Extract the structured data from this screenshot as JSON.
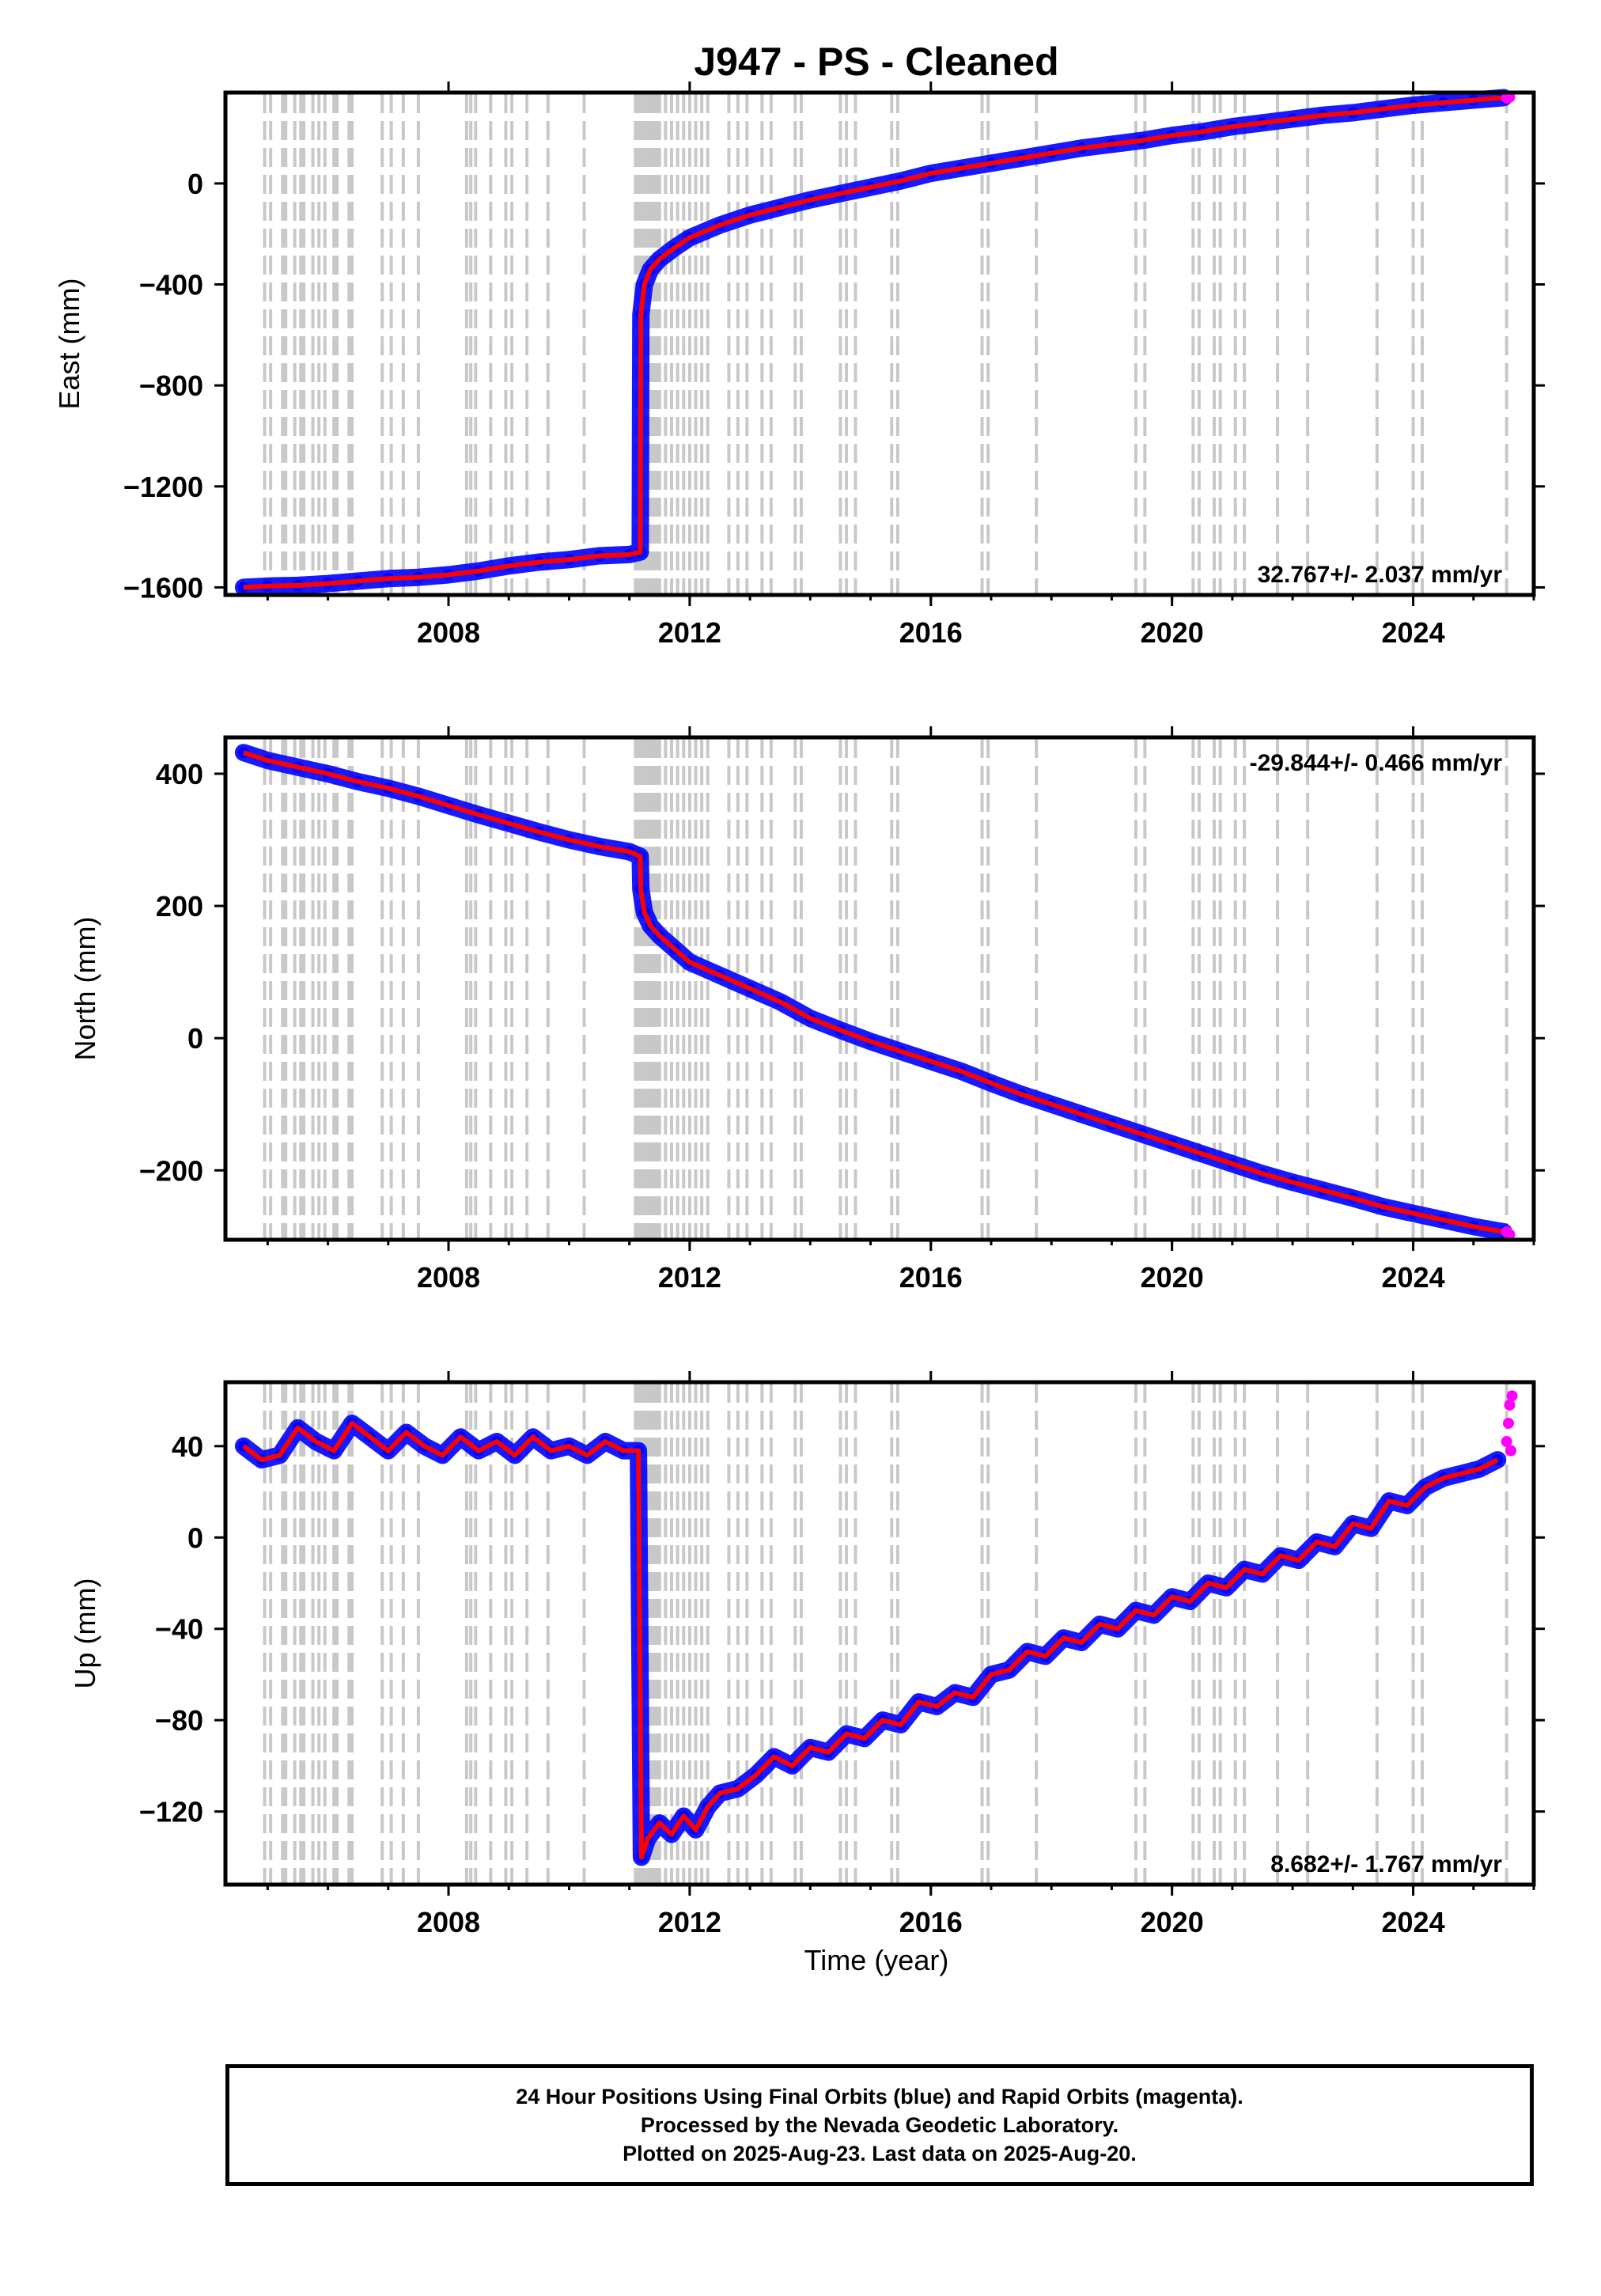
{
  "chart_data": {
    "type": "scatter",
    "title": "J947  - PS - Cleaned",
    "xlabel": "Time (year)",
    "x_tick_labels": [
      "2008",
      "2012",
      "2016",
      "2020",
      "2024"
    ],
    "x_ticks": [
      2008,
      2012,
      2016,
      2020,
      2024
    ],
    "xlim": [
      2004.3,
      2026.0
    ],
    "colors": {
      "final_orbits": "#0000ff",
      "rapid_orbits": "#ff00ff",
      "fit_line": "#ff0000",
      "event_lines": "#c8c8c8"
    },
    "event_lines_years": [
      2004.95,
      2005.05,
      2005.25,
      2005.3,
      2005.45,
      2005.55,
      2005.6,
      2005.75,
      2005.85,
      2005.95,
      2006.1,
      2006.15,
      2006.35,
      2006.4,
      2006.9,
      2007.05,
      2007.25,
      2007.5,
      2008.3,
      2008.37,
      2008.45,
      2008.7,
      2008.95,
      2009.05,
      2009.3,
      2009.65,
      2010.25,
      2011.1,
      2011.15,
      2011.2,
      2011.25,
      2011.3,
      2011.35,
      2011.4,
      2011.45,
      2011.5,
      2011.6,
      2011.7,
      2011.8,
      2011.9,
      2012.0,
      2012.1,
      2012.2,
      2012.3,
      2012.65,
      2012.8,
      2012.95,
      2013.2,
      2013.35,
      2013.75,
      2013.85,
      2014.5,
      2014.6,
      2014.75,
      2015.35,
      2015.45,
      2016.85,
      2016.95,
      2017.75,
      2019.4,
      2019.55,
      2020.35,
      2020.45,
      2020.7,
      2020.8,
      2021.05,
      2021.2,
      2021.75,
      2022.25,
      2023.4,
      2024.0,
      2024.15,
      2025.55
    ],
    "panels": [
      {
        "id": "east",
        "ylabel": "East (mm)",
        "ylim": [
          -1630,
          360
        ],
        "y_ticks": [
          0,
          -400,
          -800,
          -1200,
          -1600
        ],
        "y_tick_labels": [
          "0",
          "−400",
          "−800",
          "−1200",
          "−1600"
        ],
        "velocity_label": "32.767+/- 2.037 mm/yr",
        "velocity_anchor": "bottom-right",
        "series": [
          {
            "name": "final_orbits",
            "x": [
              2004.6,
              2005.0,
              2005.5,
              2006.0,
              2006.5,
              2007.0,
              2007.5,
              2008.0,
              2008.5,
              2009.0,
              2009.5,
              2010.0,
              2010.5,
              2011.0,
              2011.18,
              2011.19,
              2011.25,
              2011.35,
              2011.5,
              2011.75,
              2012.0,
              2012.5,
              2013.0,
              2013.5,
              2014.0,
              2014.5,
              2015.0,
              2015.5,
              2016.0,
              2016.5,
              2017.0,
              2017.5,
              2018.0,
              2018.5,
              2019.0,
              2019.5,
              2020.0,
              2020.5,
              2021.0,
              2021.5,
              2022.0,
              2022.5,
              2023.0,
              2023.5,
              2024.0,
              2024.5,
              2025.0,
              2025.5
            ],
            "y": [
              -1600,
              -1595,
              -1592,
              -1585,
              -1575,
              -1565,
              -1560,
              -1550,
              -1535,
              -1515,
              -1500,
              -1490,
              -1475,
              -1470,
              -1460,
              -520,
              -400,
              -340,
              -300,
              -255,
              -215,
              -165,
              -125,
              -95,
              -65,
              -40,
              -15,
              10,
              40,
              60,
              80,
              100,
              120,
              140,
              155,
              170,
              190,
              205,
              225,
              240,
              255,
              270,
              280,
              295,
              310,
              320,
              330,
              340
            ]
          },
          {
            "name": "rapid_orbits",
            "x": [
              2025.55,
              2025.6
            ],
            "y": [
              338,
              342
            ]
          }
        ]
      },
      {
        "id": "north",
        "ylabel": "North (mm)",
        "ylim": [
          -305,
          455
        ],
        "y_ticks": [
          400,
          200,
          0,
          -200
        ],
        "y_tick_labels": [
          "400",
          "200",
          "0",
          "−200"
        ],
        "velocity_label": "-29.844+/- 0.466 mm/yr",
        "velocity_anchor": "top-right",
        "series": [
          {
            "name": "final_orbits",
            "x": [
              2004.6,
              2005.0,
              2005.5,
              2006.0,
              2006.5,
              2007.0,
              2007.5,
              2008.0,
              2008.5,
              2009.0,
              2009.5,
              2010.0,
              2010.5,
              2011.0,
              2011.18,
              2011.19,
              2011.25,
              2011.35,
              2011.5,
              2011.75,
              2012.0,
              2012.5,
              2013.0,
              2013.5,
              2014.0,
              2014.5,
              2015.0,
              2015.5,
              2016.0,
              2016.5,
              2017.0,
              2017.5,
              2018.0,
              2018.5,
              2019.0,
              2019.5,
              2020.0,
              2020.5,
              2021.0,
              2021.5,
              2022.0,
              2022.5,
              2023.0,
              2023.5,
              2024.0,
              2024.5,
              2025.0,
              2025.5
            ],
            "y": [
              432,
              420,
              410,
              400,
              388,
              378,
              366,
              352,
              338,
              325,
              312,
              300,
              290,
              282,
              275,
              225,
              190,
              170,
              155,
              135,
              115,
              95,
              75,
              55,
              30,
              12,
              -5,
              -20,
              -35,
              -50,
              -68,
              -85,
              -100,
              -115,
              -130,
              -145,
              -160,
              -175,
              -190,
              -205,
              -218,
              -230,
              -242,
              -255,
              -265,
              -275,
              -285,
              -293
            ]
          },
          {
            "name": "rapid_orbits",
            "x": [
              2025.55,
              2025.6
            ],
            "y": [
              -293,
              -297
            ]
          }
        ]
      },
      {
        "id": "up",
        "ylabel": "Up (mm)",
        "ylim": [
          -152,
          68
        ],
        "y_ticks": [
          40,
          0,
          -40,
          -80,
          -120
        ],
        "y_tick_labels": [
          "40",
          "0",
          "−40",
          "−80",
          "−120"
        ],
        "velocity_label": "8.682+/- 1.767 mm/yr",
        "velocity_anchor": "bottom-right",
        "series": [
          {
            "name": "final_orbits",
            "x": [
              2004.6,
              2004.9,
              2005.2,
              2005.5,
              2005.8,
              2006.1,
              2006.4,
              2006.7,
              2007.0,
              2007.3,
              2007.6,
              2007.9,
              2008.2,
              2008.5,
              2008.8,
              2009.1,
              2009.4,
              2009.7,
              2010.0,
              2010.3,
              2010.6,
              2010.9,
              2011.15,
              2011.2,
              2011.3,
              2011.5,
              2011.7,
              2011.9,
              2012.1,
              2012.3,
              2012.5,
              2012.8,
              2013.1,
              2013.4,
              2013.7,
              2014.0,
              2014.3,
              2014.6,
              2014.9,
              2015.2,
              2015.5,
              2015.8,
              2016.1,
              2016.4,
              2016.7,
              2017.0,
              2017.3,
              2017.6,
              2017.9,
              2018.2,
              2018.5,
              2018.8,
              2019.1,
              2019.4,
              2019.7,
              2020.0,
              2020.3,
              2020.6,
              2020.9,
              2021.2,
              2021.5,
              2021.8,
              2022.1,
              2022.4,
              2022.7,
              2023.0,
              2023.3,
              2023.6,
              2023.9,
              2024.2,
              2024.5,
              2024.8,
              2025.1,
              2025.4
            ],
            "y": [
              40,
              34,
              36,
              48,
              42,
              38,
              50,
              44,
              38,
              46,
              40,
              36,
              44,
              38,
              42,
              36,
              44,
              38,
              40,
              36,
              42,
              38,
              38,
              -140,
              -132,
              -125,
              -130,
              -122,
              -128,
              -118,
              -112,
              -110,
              -104,
              -96,
              -100,
              -92,
              -94,
              -86,
              -88,
              -80,
              -82,
              -72,
              -74,
              -68,
              -70,
              -60,
              -58,
              -50,
              -52,
              -44,
              -46,
              -38,
              -40,
              -32,
              -34,
              -26,
              -28,
              -20,
              -22,
              -14,
              -16,
              -8,
              -10,
              -2,
              -4,
              6,
              4,
              16,
              14,
              22,
              26,
              28,
              30,
              34
            ]
          },
          {
            "name": "rapid_orbits",
            "x": [
              2025.55,
              2025.58,
              2025.6,
              2025.62,
              2025.64
            ],
            "y": [
              42,
              50,
              58,
              38,
              62
            ]
          }
        ]
      }
    ],
    "footer_lines": [
      "24 Hour Positions Using Final Orbits (blue) and Rapid Orbits (magenta).",
      "Processed by the Nevada Geodetic Laboratory.",
      "Plotted on 2025-Aug-23. Last data on 2025-Aug-20."
    ]
  }
}
